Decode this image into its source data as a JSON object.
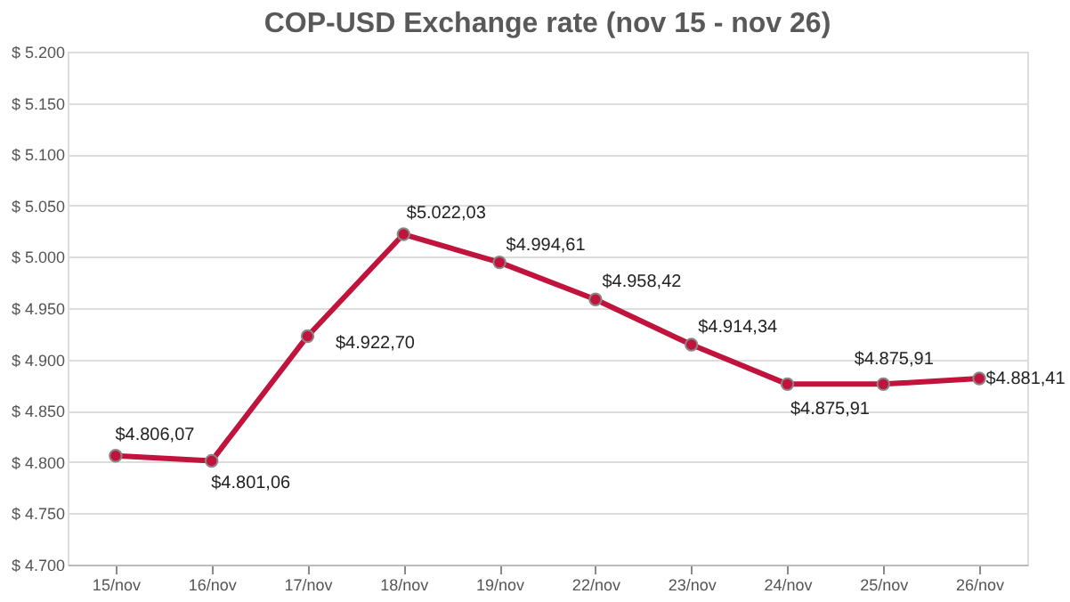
{
  "chart_data": {
    "type": "line",
    "title": "COP-USD Exchange rate (nov 15 - nov 26)",
    "categories": [
      "15/nov",
      "16/nov",
      "17/nov",
      "18/nov",
      "19/nov",
      "22/nov",
      "23/nov",
      "24/nov",
      "25/nov",
      "26/nov"
    ],
    "series": [
      {
        "color": "#c0143c",
        "values": [
          4806.07,
          4801.06,
          4922.7,
          5022.03,
          4994.61,
          4958.42,
          4914.34,
          4875.91,
          4875.91,
          4881.41
        ],
        "value_labels": [
          "$4.806,07",
          "$4.801,06",
          "$4.922,70",
          "$5.022,03",
          "$4.994,61",
          "$4.958,42",
          "$4.914,34",
          "$4.875,91",
          "$4.875,91",
          "$4.881,41"
        ]
      }
    ],
    "ylim": [
      4700,
      5200
    ],
    "yticks": [
      {
        "value": 4700,
        "label": "$ 4.700"
      },
      {
        "value": 4750,
        "label": "$ 4.750"
      },
      {
        "value": 4800,
        "label": "$ 4.800"
      },
      {
        "value": 4850,
        "label": "$ 4.850"
      },
      {
        "value": 4900,
        "label": "$ 4.900"
      },
      {
        "value": 4950,
        "label": "$ 4.950"
      },
      {
        "value": 5000,
        "label": "$ 5.000"
      },
      {
        "value": 5050,
        "label": "$ 5.050"
      },
      {
        "value": 5100,
        "label": "$ 5.100"
      },
      {
        "value": 5150,
        "label": "$ 5.150"
      },
      {
        "value": 5200,
        "label": "$ 5.200"
      }
    ],
    "grid": "y",
    "marker": "circle",
    "line_style": "solid"
  }
}
